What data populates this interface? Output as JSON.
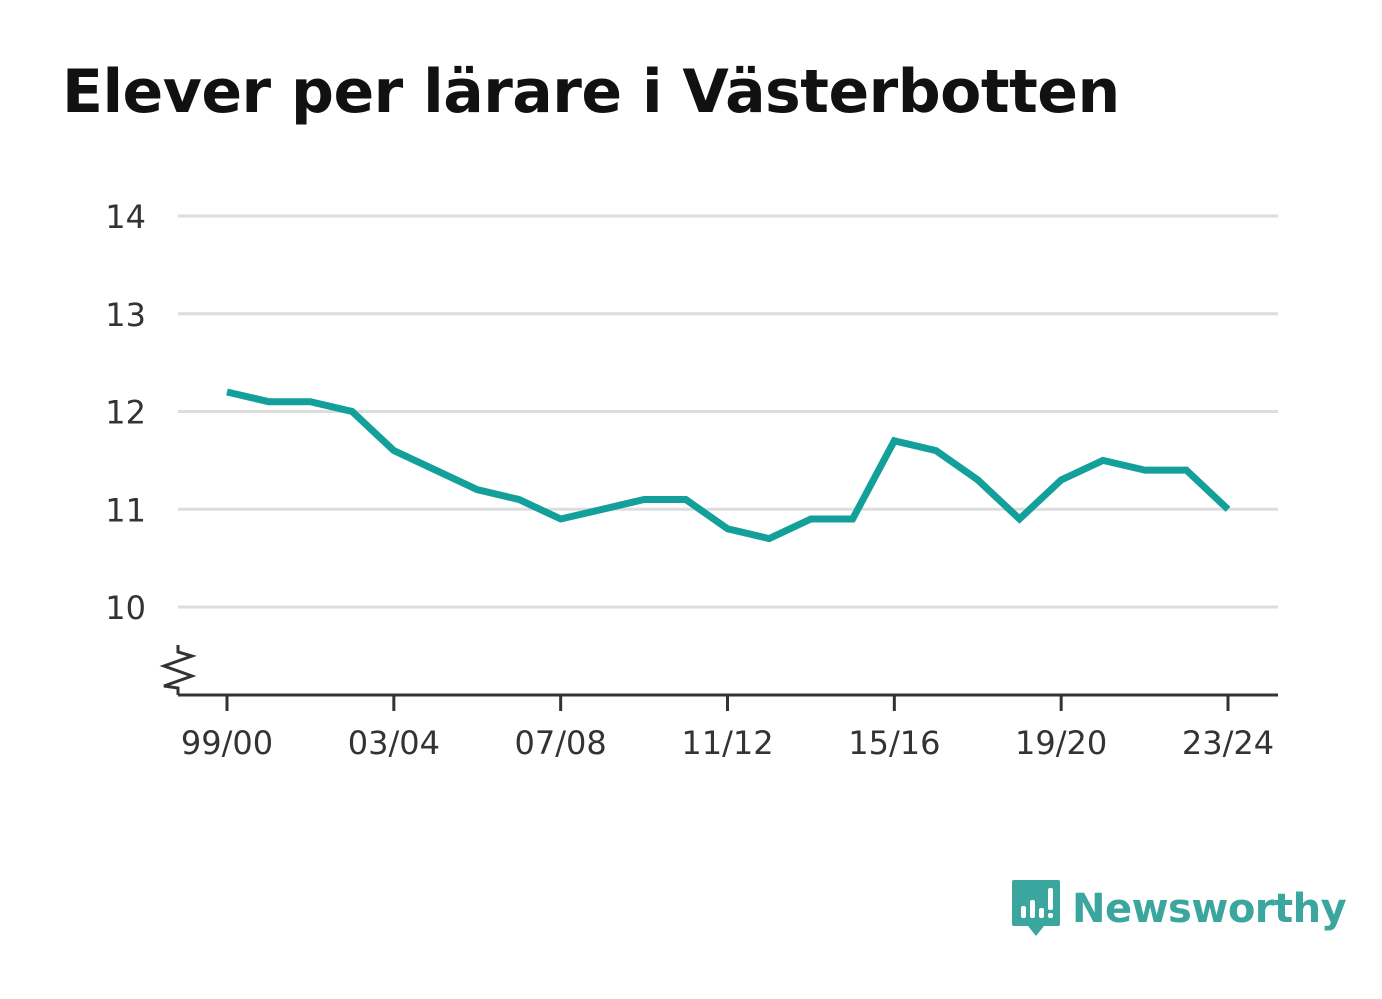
{
  "chart_data": {
    "type": "line",
    "title": "Elever per lärare i Västerbotten",
    "xlabel": "",
    "ylabel": "",
    "ylim": [
      9.1,
      14
    ],
    "yticks": [
      "10",
      "11",
      "12",
      "13",
      "14"
    ],
    "ytick_values": [
      10,
      11,
      12,
      13,
      14
    ],
    "axis_break": true,
    "grid": true,
    "legend": "none",
    "x": [
      "99/00",
      "00/01",
      "01/02",
      "02/03",
      "03/04",
      "04/05",
      "05/06",
      "06/07",
      "07/08",
      "08/09",
      "09/10",
      "10/11",
      "11/12",
      "12/13",
      "13/14",
      "14/15",
      "15/16",
      "16/17",
      "17/18",
      "18/19",
      "19/20",
      "20/21",
      "21/22",
      "22/23",
      "23/24"
    ],
    "xticks": [
      "99/00",
      "03/04",
      "07/08",
      "11/12",
      "15/16",
      "19/20",
      "23/24"
    ],
    "series": [
      {
        "values": [
          12.2,
          12.1,
          12.1,
          12.0,
          11.6,
          11.4,
          11.2,
          11.1,
          10.9,
          11.0,
          11.1,
          11.1,
          10.8,
          10.7,
          10.9,
          10.9,
          11.7,
          11.6,
          11.3,
          10.9,
          11.3,
          11.5,
          11.4,
          11.4,
          11.0
        ],
        "color": "#14a09a"
      }
    ],
    "colors": {
      "grid": "#dddddd",
      "axis": "#333333",
      "text": "#333333"
    }
  },
  "brand": {
    "name": "Newsworthy",
    "icon": "newsworthy-logo-icon",
    "color": "#3aa69e"
  }
}
